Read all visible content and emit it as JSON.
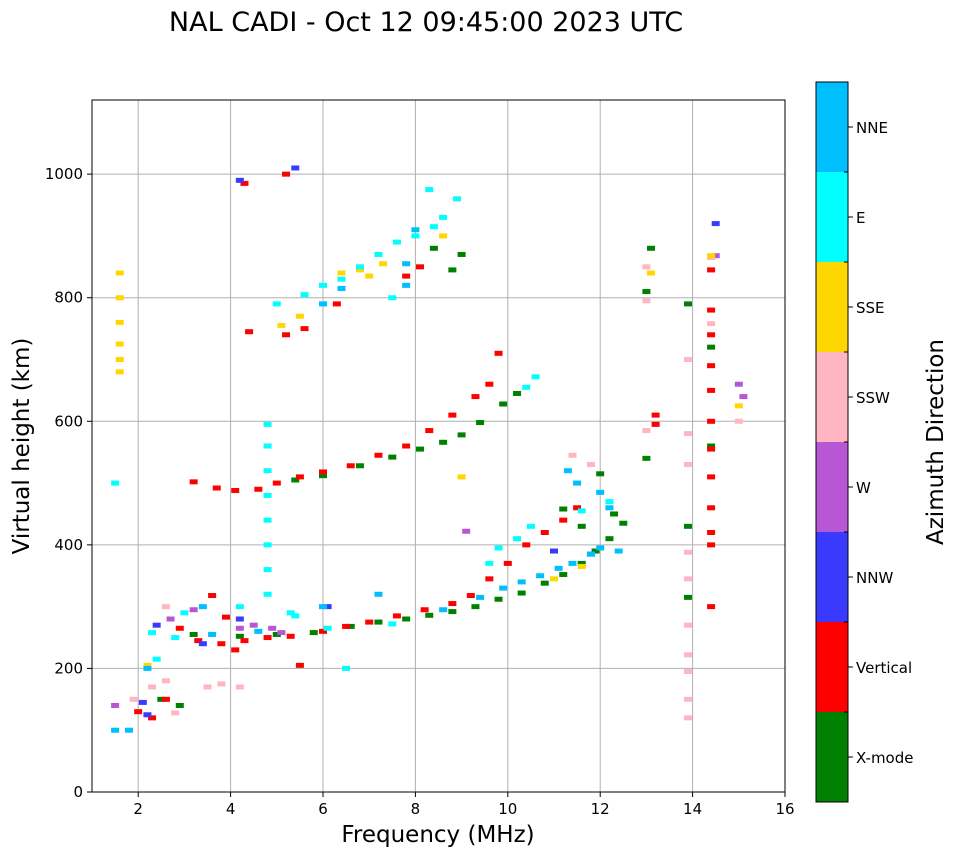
{
  "chart_data": {
    "type": "scatter",
    "title": "NAL CADI - Oct 12 09:45:00 2023 UTC",
    "xlabel": "Frequency (MHz)",
    "ylabel": "Virtual height (km)",
    "xlim": [
      1,
      16
    ],
    "ylim": [
      0,
      1120
    ],
    "xticks": [
      2,
      4,
      6,
      8,
      10,
      12,
      14,
      16
    ],
    "yticks": [
      0,
      200,
      400,
      600,
      800,
      1000
    ],
    "grid": true,
    "colorbar": {
      "label": "Azimuth Direction",
      "placement": "right",
      "categories": [
        {
          "name": "X-mode",
          "color": "#008000"
        },
        {
          "name": "Vertical",
          "color": "#ff0000"
        },
        {
          "name": "NNW",
          "color": "#3a3aff"
        },
        {
          "name": "W",
          "color": "#b757d6"
        },
        {
          "name": "SSW",
          "color": "#ffb6c1"
        },
        {
          "name": "SSE",
          "color": "#ffd700"
        },
        {
          "name": "E",
          "color": "#00ffff"
        },
        {
          "name": "NNE",
          "color": "#00bfff"
        }
      ]
    },
    "series": [
      {
        "name": "X-mode",
        "points": [
          [
            2.5,
            150
          ],
          [
            2.9,
            140
          ],
          [
            3.2,
            255
          ],
          [
            4.2,
            252
          ],
          [
            5.0,
            255
          ],
          [
            5.8,
            258
          ],
          [
            6.6,
            268
          ],
          [
            7.2,
            275
          ],
          [
            7.8,
            280
          ],
          [
            8.3,
            286
          ],
          [
            8.8,
            292
          ],
          [
            9.3,
            300
          ],
          [
            9.8,
            312
          ],
          [
            10.3,
            322
          ],
          [
            10.8,
            338
          ],
          [
            11.2,
            352
          ],
          [
            11.6,
            370
          ],
          [
            11.9,
            390
          ],
          [
            12.2,
            410
          ],
          [
            12.5,
            435
          ],
          [
            5.4,
            505
          ],
          [
            6.0,
            512
          ],
          [
            6.8,
            528
          ],
          [
            7.5,
            542
          ],
          [
            8.1,
            555
          ],
          [
            8.6,
            566
          ],
          [
            9.0,
            578
          ],
          [
            9.4,
            598
          ],
          [
            9.9,
            628
          ],
          [
            10.2,
            645
          ],
          [
            13.0,
            810
          ],
          [
            13.1,
            880
          ],
          [
            8.4,
            880
          ],
          [
            8.8,
            845
          ],
          [
            9.0,
            870
          ],
          [
            11.2,
            458
          ],
          [
            11.6,
            430
          ],
          [
            12.3,
            450
          ],
          [
            12.0,
            515
          ],
          [
            13.0,
            540
          ],
          [
            13.9,
            430
          ],
          [
            13.9,
            315
          ],
          [
            13.9,
            790
          ],
          [
            14.4,
            560
          ],
          [
            14.4,
            720
          ]
        ]
      },
      {
        "name": "Vertical",
        "points": [
          [
            2.0,
            130
          ],
          [
            2.3,
            120
          ],
          [
            2.6,
            150
          ],
          [
            2.9,
            265
          ],
          [
            3.3,
            245
          ],
          [
            3.8,
            240
          ],
          [
            4.3,
            245
          ],
          [
            4.8,
            250
          ],
          [
            5.3,
            252
          ],
          [
            6.0,
            260
          ],
          [
            6.5,
            268
          ],
          [
            7.0,
            275
          ],
          [
            7.6,
            285
          ],
          [
            8.2,
            295
          ],
          [
            8.8,
            305
          ],
          [
            9.2,
            318
          ],
          [
            9.6,
            345
          ],
          [
            10.0,
            370
          ],
          [
            10.4,
            400
          ],
          [
            10.8,
            420
          ],
          [
            11.2,
            440
          ],
          [
            11.5,
            460
          ],
          [
            3.2,
            502
          ],
          [
            3.7,
            492
          ],
          [
            4.1,
            488
          ],
          [
            4.6,
            490
          ],
          [
            5.0,
            500
          ],
          [
            5.5,
            510
          ],
          [
            6.0,
            518
          ],
          [
            6.6,
            528
          ],
          [
            7.2,
            545
          ],
          [
            7.8,
            560
          ],
          [
            8.3,
            585
          ],
          [
            8.8,
            610
          ],
          [
            9.3,
            640
          ],
          [
            9.6,
            660
          ],
          [
            9.8,
            710
          ],
          [
            4.4,
            745
          ],
          [
            5.2,
            740
          ],
          [
            5.6,
            750
          ],
          [
            6.3,
            790
          ],
          [
            7.8,
            835
          ],
          [
            8.1,
            850
          ],
          [
            4.3,
            985
          ],
          [
            5.2,
            1000
          ],
          [
            3.6,
            318
          ],
          [
            3.9,
            283
          ],
          [
            5.5,
            205
          ],
          [
            4.1,
            230
          ],
          [
            14.4,
            300
          ],
          [
            14.4,
            400
          ],
          [
            14.4,
            420
          ],
          [
            14.4,
            460
          ],
          [
            14.4,
            510
          ],
          [
            14.4,
            555
          ],
          [
            14.4,
            600
          ],
          [
            14.4,
            650
          ],
          [
            14.4,
            690
          ],
          [
            14.4,
            740
          ],
          [
            14.4,
            780
          ],
          [
            14.4,
            845
          ],
          [
            13.2,
            610
          ],
          [
            13.2,
            595
          ]
        ]
      },
      {
        "name": "NNW",
        "points": [
          [
            2.1,
            145
          ],
          [
            2.4,
            270
          ],
          [
            3.4,
            240
          ],
          [
            4.2,
            280
          ],
          [
            6.1,
            300
          ],
          [
            11.0,
            390
          ],
          [
            4.2,
            990
          ],
          [
            5.4,
            1010
          ],
          [
            14.5,
            920
          ],
          [
            2.2,
            125
          ]
        ]
      },
      {
        "name": "W",
        "points": [
          [
            1.5,
            140
          ],
          [
            3.2,
            295
          ],
          [
            4.2,
            265
          ],
          [
            4.5,
            270
          ],
          [
            5.1,
            258
          ],
          [
            9.1,
            422
          ],
          [
            14.5,
            868
          ],
          [
            15.0,
            660
          ],
          [
            15.1,
            640
          ],
          [
            11.8,
            385
          ],
          [
            2.7,
            280
          ],
          [
            4.9,
            265
          ]
        ]
      },
      {
        "name": "SSW",
        "points": [
          [
            1.9,
            150
          ],
          [
            2.3,
            170
          ],
          [
            2.6,
            180
          ],
          [
            2.6,
            300
          ],
          [
            2.8,
            128
          ],
          [
            3.5,
            170
          ],
          [
            3.8,
            175
          ],
          [
            4.2,
            170
          ],
          [
            13.0,
            850
          ],
          [
            13.0,
            795
          ],
          [
            13.0,
            585
          ],
          [
            13.9,
            120
          ],
          [
            13.9,
            150
          ],
          [
            13.9,
            195
          ],
          [
            13.9,
            222
          ],
          [
            13.9,
            270
          ],
          [
            13.9,
            345
          ],
          [
            13.9,
            388
          ],
          [
            13.9,
            530
          ],
          [
            13.9,
            580
          ],
          [
            13.9,
            700
          ],
          [
            14.4,
            758
          ],
          [
            14.4,
            865
          ],
          [
            15.0,
            600
          ],
          [
            11.4,
            545
          ],
          [
            11.8,
            530
          ]
        ]
      },
      {
        "name": "SSE",
        "points": [
          [
            2.2,
            205
          ],
          [
            1.6,
            680
          ],
          [
            1.6,
            700
          ],
          [
            1.6,
            725
          ],
          [
            1.6,
            760
          ],
          [
            1.6,
            800
          ],
          [
            1.6,
            840
          ],
          [
            5.1,
            755
          ],
          [
            5.5,
            770
          ],
          [
            6.4,
            840
          ],
          [
            6.8,
            845
          ],
          [
            7.0,
            835
          ],
          [
            7.3,
            855
          ],
          [
            8.6,
            900
          ],
          [
            15.0,
            625
          ],
          [
            14.4,
            868
          ],
          [
            9.0,
            510
          ],
          [
            11.0,
            345
          ],
          [
            11.6,
            365
          ],
          [
            13.1,
            840
          ]
        ]
      },
      {
        "name": "E",
        "points": [
          [
            2.4,
            215
          ],
          [
            2.8,
            250
          ],
          [
            4.2,
            300
          ],
          [
            4.8,
            320
          ],
          [
            4.8,
            360
          ],
          [
            4.8,
            400
          ],
          [
            4.8,
            440
          ],
          [
            4.8,
            480
          ],
          [
            4.8,
            520
          ],
          [
            4.8,
            560
          ],
          [
            4.8,
            595
          ],
          [
            5.3,
            290
          ],
          [
            6.1,
            265
          ],
          [
            6.5,
            200
          ],
          [
            7.5,
            272
          ],
          [
            9.6,
            370
          ],
          [
            9.8,
            395
          ],
          [
            10.2,
            410
          ],
          [
            10.5,
            430
          ],
          [
            11.6,
            455
          ],
          [
            12.2,
            470
          ],
          [
            5.0,
            790
          ],
          [
            5.6,
            805
          ],
          [
            6.0,
            820
          ],
          [
            6.4,
            830
          ],
          [
            6.8,
            850
          ],
          [
            7.2,
            870
          ],
          [
            7.6,
            890
          ],
          [
            8.0,
            900
          ],
          [
            8.4,
            915
          ],
          [
            8.6,
            930
          ],
          [
            8.9,
            960
          ],
          [
            8.3,
            975
          ],
          [
            10.4,
            655
          ],
          [
            10.6,
            672
          ],
          [
            1.5,
            500
          ],
          [
            2.3,
            258
          ],
          [
            7.5,
            800
          ],
          [
            5.4,
            285
          ],
          [
            3.0,
            290
          ]
        ]
      },
      {
        "name": "NNE",
        "points": [
          [
            1.5,
            100
          ],
          [
            1.8,
            100
          ],
          [
            2.2,
            200
          ],
          [
            3.4,
            300
          ],
          [
            4.6,
            260
          ],
          [
            6.0,
            300
          ],
          [
            7.2,
            320
          ],
          [
            8.6,
            295
          ],
          [
            9.4,
            315
          ],
          [
            9.9,
            330
          ],
          [
            10.3,
            340
          ],
          [
            10.7,
            350
          ],
          [
            11.1,
            362
          ],
          [
            11.4,
            370
          ],
          [
            11.8,
            385
          ],
          [
            12.0,
            395
          ],
          [
            12.4,
            390
          ],
          [
            12.2,
            460
          ],
          [
            12.0,
            485
          ],
          [
            11.5,
            500
          ],
          [
            11.3,
            520
          ],
          [
            6.0,
            790
          ],
          [
            6.4,
            815
          ],
          [
            7.8,
            820
          ],
          [
            8.0,
            910
          ],
          [
            7.8,
            855
          ],
          [
            3.6,
            255
          ]
        ]
      }
    ]
  }
}
